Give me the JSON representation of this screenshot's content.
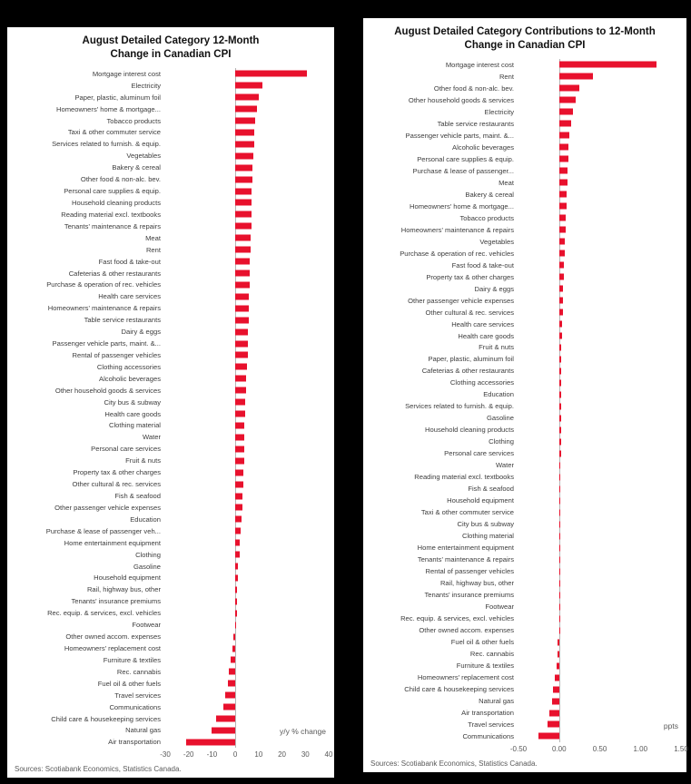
{
  "page": {
    "background_color": "#000000",
    "panel_color": "#ffffff"
  },
  "chart_data": [
    {
      "type": "bar",
      "orientation": "horizontal",
      "title_line1": "August Detailed Category 12-Month",
      "title_line2": "Change in Canadian CPI",
      "xlabel": "y/y % change",
      "source": "Sources: Scotiabank Economics, Statistics Canada.",
      "bar_color": "#e8112d",
      "grid": "zero-line-only",
      "xlim": [
        -30,
        40
      ],
      "xticks": [
        {
          "label": "-30",
          "value": -30
        },
        {
          "label": "-20",
          "value": -20
        },
        {
          "label": "-10",
          "value": -10
        },
        {
          "label": "0",
          "value": 0
        },
        {
          "label": "10",
          "value": 10
        },
        {
          "label": "20",
          "value": 20
        },
        {
          "label": "30",
          "value": 30
        },
        {
          "label": "40",
          "value": 40
        }
      ],
      "categories": [
        "Mortgage interest cost",
        "Electricity",
        "Paper, plastic, aluminum foil",
        "Homeowners' home & mortgage...",
        "Tobacco products",
        "Taxi & other commuter service",
        "Services related to furnish. & equip.",
        "Vegetables",
        "Bakery & cereal",
        "Other food & non-alc. bev.",
        "Personal care supplies & equip.",
        "Household cleaning products",
        "Reading material excl. textbooks",
        "Tenants' maintenance & repairs",
        "Meat",
        "Rent",
        "Fast food & take-out",
        "Cafeterias & other restaurants",
        "Purchase & operation of rec. vehicles",
        "Health care services",
        "Homeowners' maintenance & repairs",
        "Table service restaurants",
        "Dairy & eggs",
        "Passenger vehicle parts, maint. &...",
        "Rental of passenger vehicles",
        "Clothing accessories",
        "Alcoholic beverages",
        "Other household goods & services",
        "City bus & subway",
        "Health care goods",
        "Clothing material",
        "Water",
        "Personal care services",
        "Fruit & nuts",
        "Property tax & other charges",
        "Other cultural & rec. services",
        "Fish & seafood",
        "Other passenger vehicle expenses",
        "Education",
        "Purchase & lease of passenger veh...",
        "Home entertainment equipment",
        "Clothing",
        "Gasoline",
        "Household equipment",
        "Rail, highway bus, other",
        "Tenants' insurance premiums",
        "Rec. equip. & services, excl. vehicles",
        "Footwear",
        "Other owned accom. expenses",
        "Homeowners' replacement cost",
        "Furniture & textiles",
        "Rec. cannabis",
        "Fuel oil & other fuels",
        "Travel services",
        "Communications",
        "Child care & housekeeping services",
        "Natural gas",
        "Air transportation"
      ],
      "values": [
        30.6,
        11.7,
        9.9,
        9.1,
        8.6,
        8.3,
        8.0,
        7.7,
        7.5,
        7.3,
        7.1,
        7.0,
        6.9,
        6.8,
        6.7,
        6.5,
        6.3,
        6.2,
        6.0,
        5.9,
        5.8,
        5.7,
        5.5,
        5.3,
        5.2,
        5.0,
        4.8,
        4.6,
        4.3,
        4.2,
        4.0,
        3.9,
        3.8,
        3.7,
        3.6,
        3.4,
        3.2,
        3.0,
        2.7,
        2.4,
        2.0,
        1.7,
        1.3,
        1.1,
        0.9,
        0.8,
        0.6,
        0.5,
        -0.7,
        -1.3,
        -2.0,
        -2.6,
        -3.2,
        -4.2,
        -5.1,
        -8.2,
        -10.3,
        -21.0
      ]
    },
    {
      "type": "bar",
      "orientation": "horizontal",
      "title_line1": "August Detailed Category Contributions to 12-Month",
      "title_line2": "Change in Canadian CPI",
      "xlabel": "ppts",
      "source": "Sources: Scotiabank Economics, Statistics Canada.",
      "bar_color": "#e8112d",
      "grid": "zero-line-only",
      "xlim": [
        -0.5,
        1.5
      ],
      "xticks": [
        {
          "label": "-0.50",
          "value": -0.5
        },
        {
          "label": "0.00",
          "value": 0
        },
        {
          "label": "0.50",
          "value": 0.5
        },
        {
          "label": "1.00",
          "value": 1.0
        },
        {
          "label": "1.50",
          "value": 1.5
        }
      ],
      "categories": [
        "Mortgage interest cost",
        "Rent",
        "Other food & non-alc. bev.",
        "Other household goods & services",
        "Electricity",
        "Table service restaurants",
        "Passenger vehicle parts, maint. &...",
        "Alcoholic beverages",
        "Personal care supplies & equip.",
        "Purchase & lease of passenger...",
        "Meat",
        "Bakery & cereal",
        "Homeowners' home & mortgage...",
        "Tobacco products",
        "Homeowners' maintenance & repairs",
        "Vegetables",
        "Purchase & operation of rec. vehicles",
        "Fast food & take-out",
        "Property tax & other charges",
        "Dairy & eggs",
        "Other passenger vehicle expenses",
        "Other cultural & rec. services",
        "Health care services",
        "Health care goods",
        "Fruit & nuts",
        "Paper, plastic, aluminum foil",
        "Cafeterias & other restaurants",
        "Clothing accessories",
        "Education",
        "Services related to furnish. & equip.",
        "Gasoline",
        "Household cleaning products",
        "Clothing",
        "Personal care services",
        "Water",
        "Reading material excl. textbooks",
        "Fish & seafood",
        "Household equipment",
        "Taxi & other commuter service",
        "City bus & subway",
        "Clothing material",
        "Home entertainment equipment",
        "Tenants' maintenance & repairs",
        "Rental of passenger vehicles",
        "Rail, highway bus, other",
        "Tenants' insurance premiums",
        "Footwear",
        "Rec. equip. & services, excl. vehicles",
        "Other owned accom. expenses",
        "Fuel oil & other fuels",
        "Rec. cannabis",
        "Furniture & textiles",
        "Homeowners' replacement cost",
        "Child care & housekeeping services",
        "Natural gas",
        "Air transportation",
        "Travel services",
        "Communications"
      ],
      "values": [
        1.2,
        0.42,
        0.25,
        0.2,
        0.17,
        0.15,
        0.13,
        0.12,
        0.11,
        0.1,
        0.1,
        0.09,
        0.09,
        0.08,
        0.08,
        0.07,
        0.07,
        0.06,
        0.06,
        0.05,
        0.05,
        0.05,
        0.04,
        0.04,
        0.03,
        0.03,
        0.03,
        0.03,
        0.02,
        0.02,
        0.02,
        0.02,
        0.02,
        0.02,
        0.01,
        0.01,
        0.01,
        0.01,
        0.01,
        0.01,
        0.01,
        0.01,
        0.01,
        0.01,
        0.005,
        0.005,
        0.005,
        0.005,
        0.005,
        -0.02,
        -0.02,
        -0.03,
        -0.05,
        -0.07,
        -0.09,
        -0.12,
        -0.14,
        -0.25
      ]
    }
  ]
}
